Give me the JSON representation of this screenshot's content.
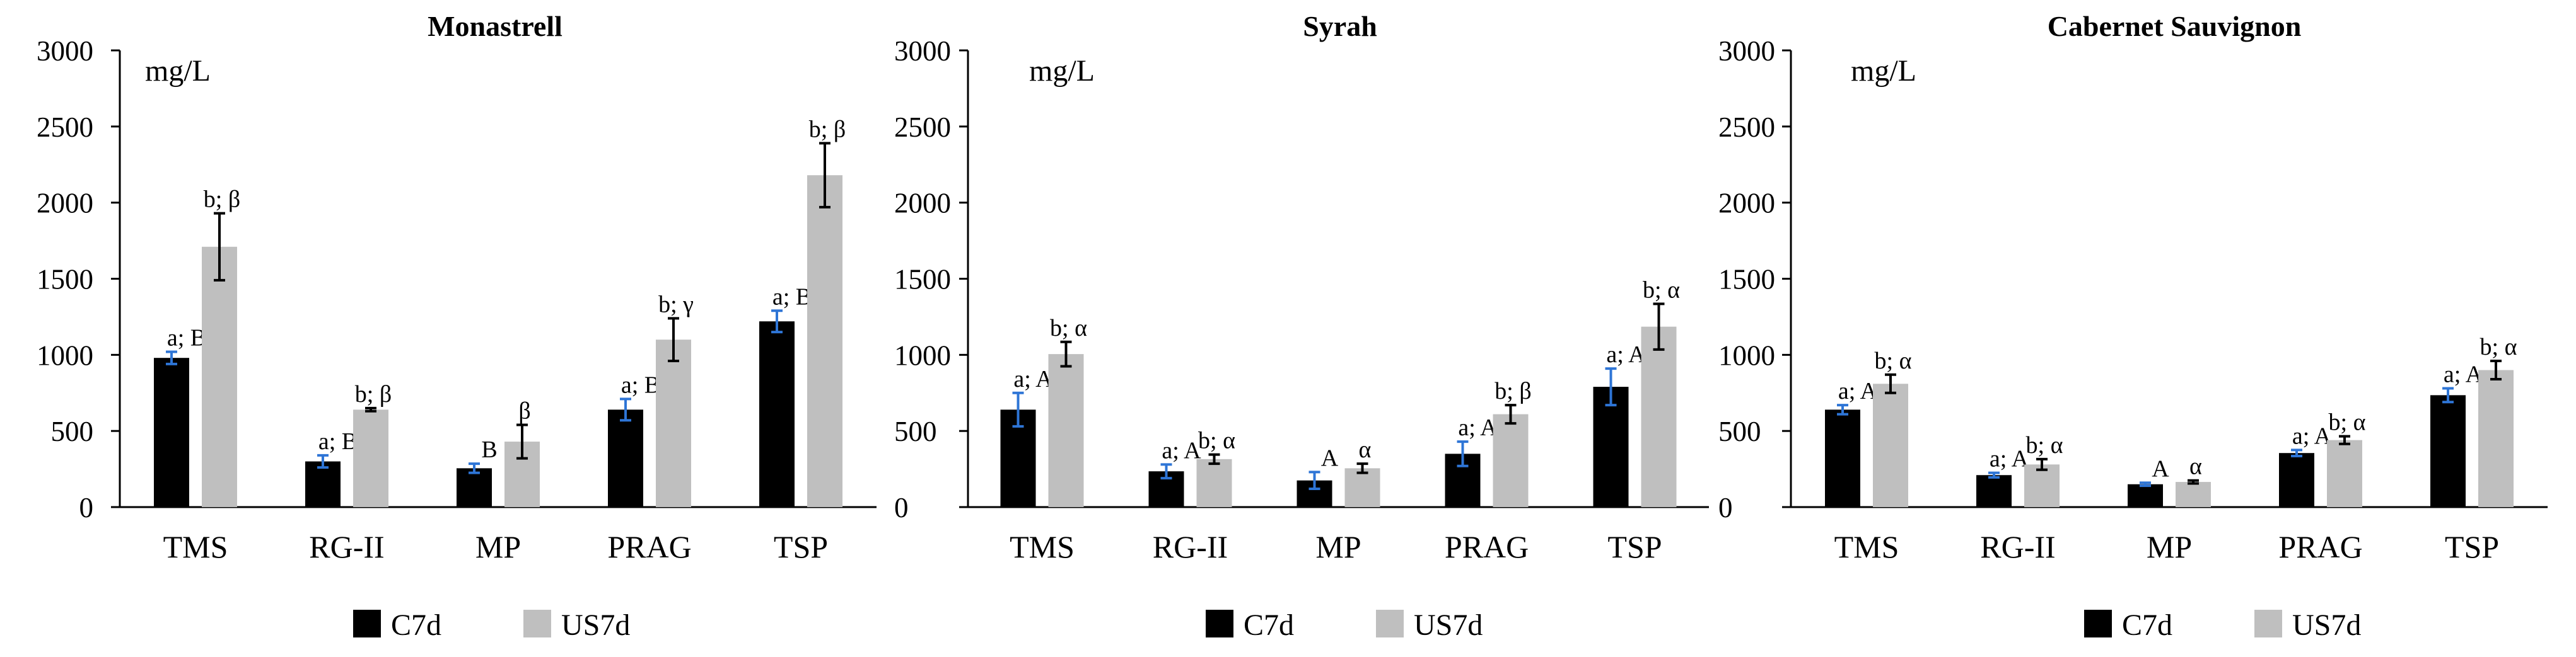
{
  "chart_data": [
    {
      "type": "bar",
      "title": "Monastrell",
      "unit_label": "mg/L",
      "ylim": [
        0,
        3000
      ],
      "yticks": [
        "0",
        "500",
        "1000",
        "1500",
        "2000",
        "2500",
        "3000"
      ],
      "categories": [
        "TMS",
        "RG-II",
        "MP",
        "PRAG",
        "TSP"
      ],
      "series": [
        {
          "name": "C7d",
          "color": "#000000",
          "error_color": "#2E75D6",
          "values": [
            980,
            300,
            255,
            640,
            1220
          ],
          "errors": [
            40,
            40,
            30,
            70,
            70
          ],
          "labels": [
            "a; B",
            "a; B",
            "B",
            "a; B",
            "a; B"
          ]
        },
        {
          "name": "US7d",
          "color": "#BFBFBF",
          "error_color": "#000000",
          "values": [
            1710,
            640,
            430,
            1100,
            2180
          ],
          "errors": [
            220,
            10,
            110,
            140,
            210
          ],
          "labels": [
            "b; β",
            "b; β",
            "β",
            "b; γ",
            "b; β"
          ]
        }
      ],
      "legend": [
        "C7d",
        "US7d"
      ]
    },
    {
      "type": "bar",
      "title": "Syrah",
      "unit_label": "mg/L",
      "ylim": [
        0,
        3000
      ],
      "yticks": [
        "0",
        "500",
        "1000",
        "1500",
        "2000",
        "2500",
        "3000"
      ],
      "categories": [
        "TMS",
        "RG-II",
        "MP",
        "PRAG",
        "TSP"
      ],
      "series": [
        {
          "name": "C7d",
          "color": "#000000",
          "error_color": "#2E75D6",
          "values": [
            640,
            235,
            175,
            350,
            790
          ],
          "errors": [
            110,
            45,
            55,
            80,
            120
          ],
          "labels": [
            "a; A",
            "a; A",
            "A",
            "a; A",
            "a; A"
          ]
        },
        {
          "name": "US7d",
          "color": "#BFBFBF",
          "error_color": "#000000",
          "values": [
            1005,
            315,
            255,
            610,
            1185
          ],
          "errors": [
            80,
            30,
            30,
            60,
            150
          ],
          "labels": [
            "b; α",
            "b; α",
            "α",
            "b; β",
            "b; α"
          ]
        }
      ],
      "legend": [
        "C7d",
        "US7d"
      ]
    },
    {
      "type": "bar",
      "title": "Cabernet Sauvignon",
      "unit_label": "mg/L",
      "ylim": [
        0,
        3000
      ],
      "yticks": [
        "0",
        "500",
        "1000",
        "1500",
        "2000",
        "2500",
        "3000"
      ],
      "categories": [
        "TMS",
        "RG-II",
        "MP",
        "PRAG",
        "TSP"
      ],
      "series": [
        {
          "name": "C7d",
          "color": "#000000",
          "error_color": "#2E75D6",
          "values": [
            640,
            210,
            150,
            355,
            735
          ],
          "errors": [
            30,
            15,
            10,
            20,
            45
          ],
          "labels": [
            "a; A",
            "a; A",
            "A",
            "a; A",
            "a; A"
          ]
        },
        {
          "name": "US7d",
          "color": "#BFBFBF",
          "error_color": "#000000",
          "values": [
            810,
            280,
            165,
            440,
            900
          ],
          "errors": [
            60,
            35,
            10,
            25,
            60
          ],
          "labels": [
            "b; α",
            "b; α",
            "α",
            "b; α",
            "b; α"
          ]
        }
      ],
      "legend": [
        "C7d",
        "US7d"
      ]
    }
  ]
}
